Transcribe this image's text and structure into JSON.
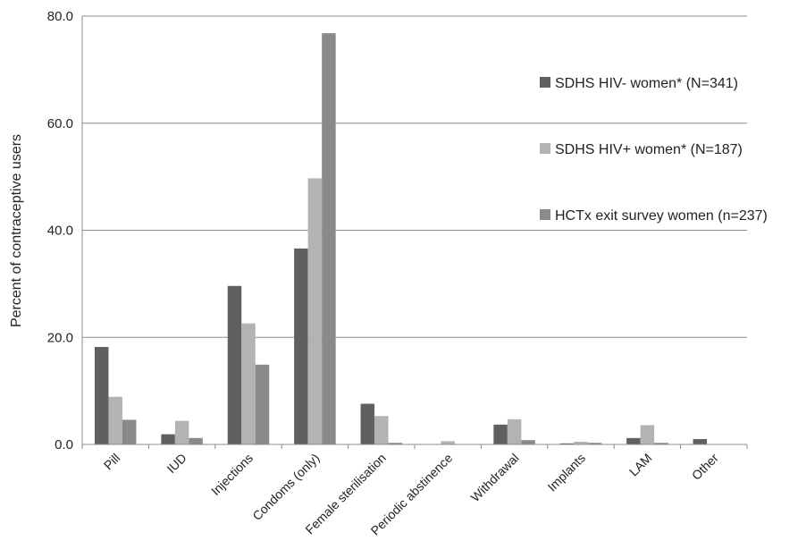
{
  "chart_data": {
    "type": "bar",
    "ylabel": "Percent of contraceptive users",
    "ylim": [
      0,
      80
    ],
    "yticks": [
      "0.0",
      "20.0",
      "40.0",
      "60.0",
      "80.0"
    ],
    "grid": true,
    "legend_position": "right",
    "categories": [
      "Pill",
      "IUD",
      "Injections",
      "Condoms (only)",
      "Female sterilisation",
      "Periodic abstinence",
      "Withdrawal",
      "Implants",
      "LAM",
      "Other"
    ],
    "series": [
      {
        "name": "SDHS HIV- women* (N=341)",
        "color": "#606060",
        "values": [
          18.2,
          1.9,
          29.6,
          36.6,
          7.6,
          0.0,
          3.7,
          0.2,
          1.2,
          1.0
        ]
      },
      {
        "name": "SDHS HIV+ women* (N=187)",
        "color": "#b3b3b3",
        "values": [
          8.9,
          4.4,
          22.6,
          49.7,
          5.3,
          0.6,
          4.7,
          0.5,
          3.6,
          0.0
        ]
      },
      {
        "name": "HCTx exit survey women (n=237)",
        "color": "#8a8a8a",
        "values": [
          4.6,
          1.2,
          14.9,
          76.8,
          0.3,
          0.0,
          0.8,
          0.3,
          0.3,
          0.0
        ]
      }
    ]
  }
}
